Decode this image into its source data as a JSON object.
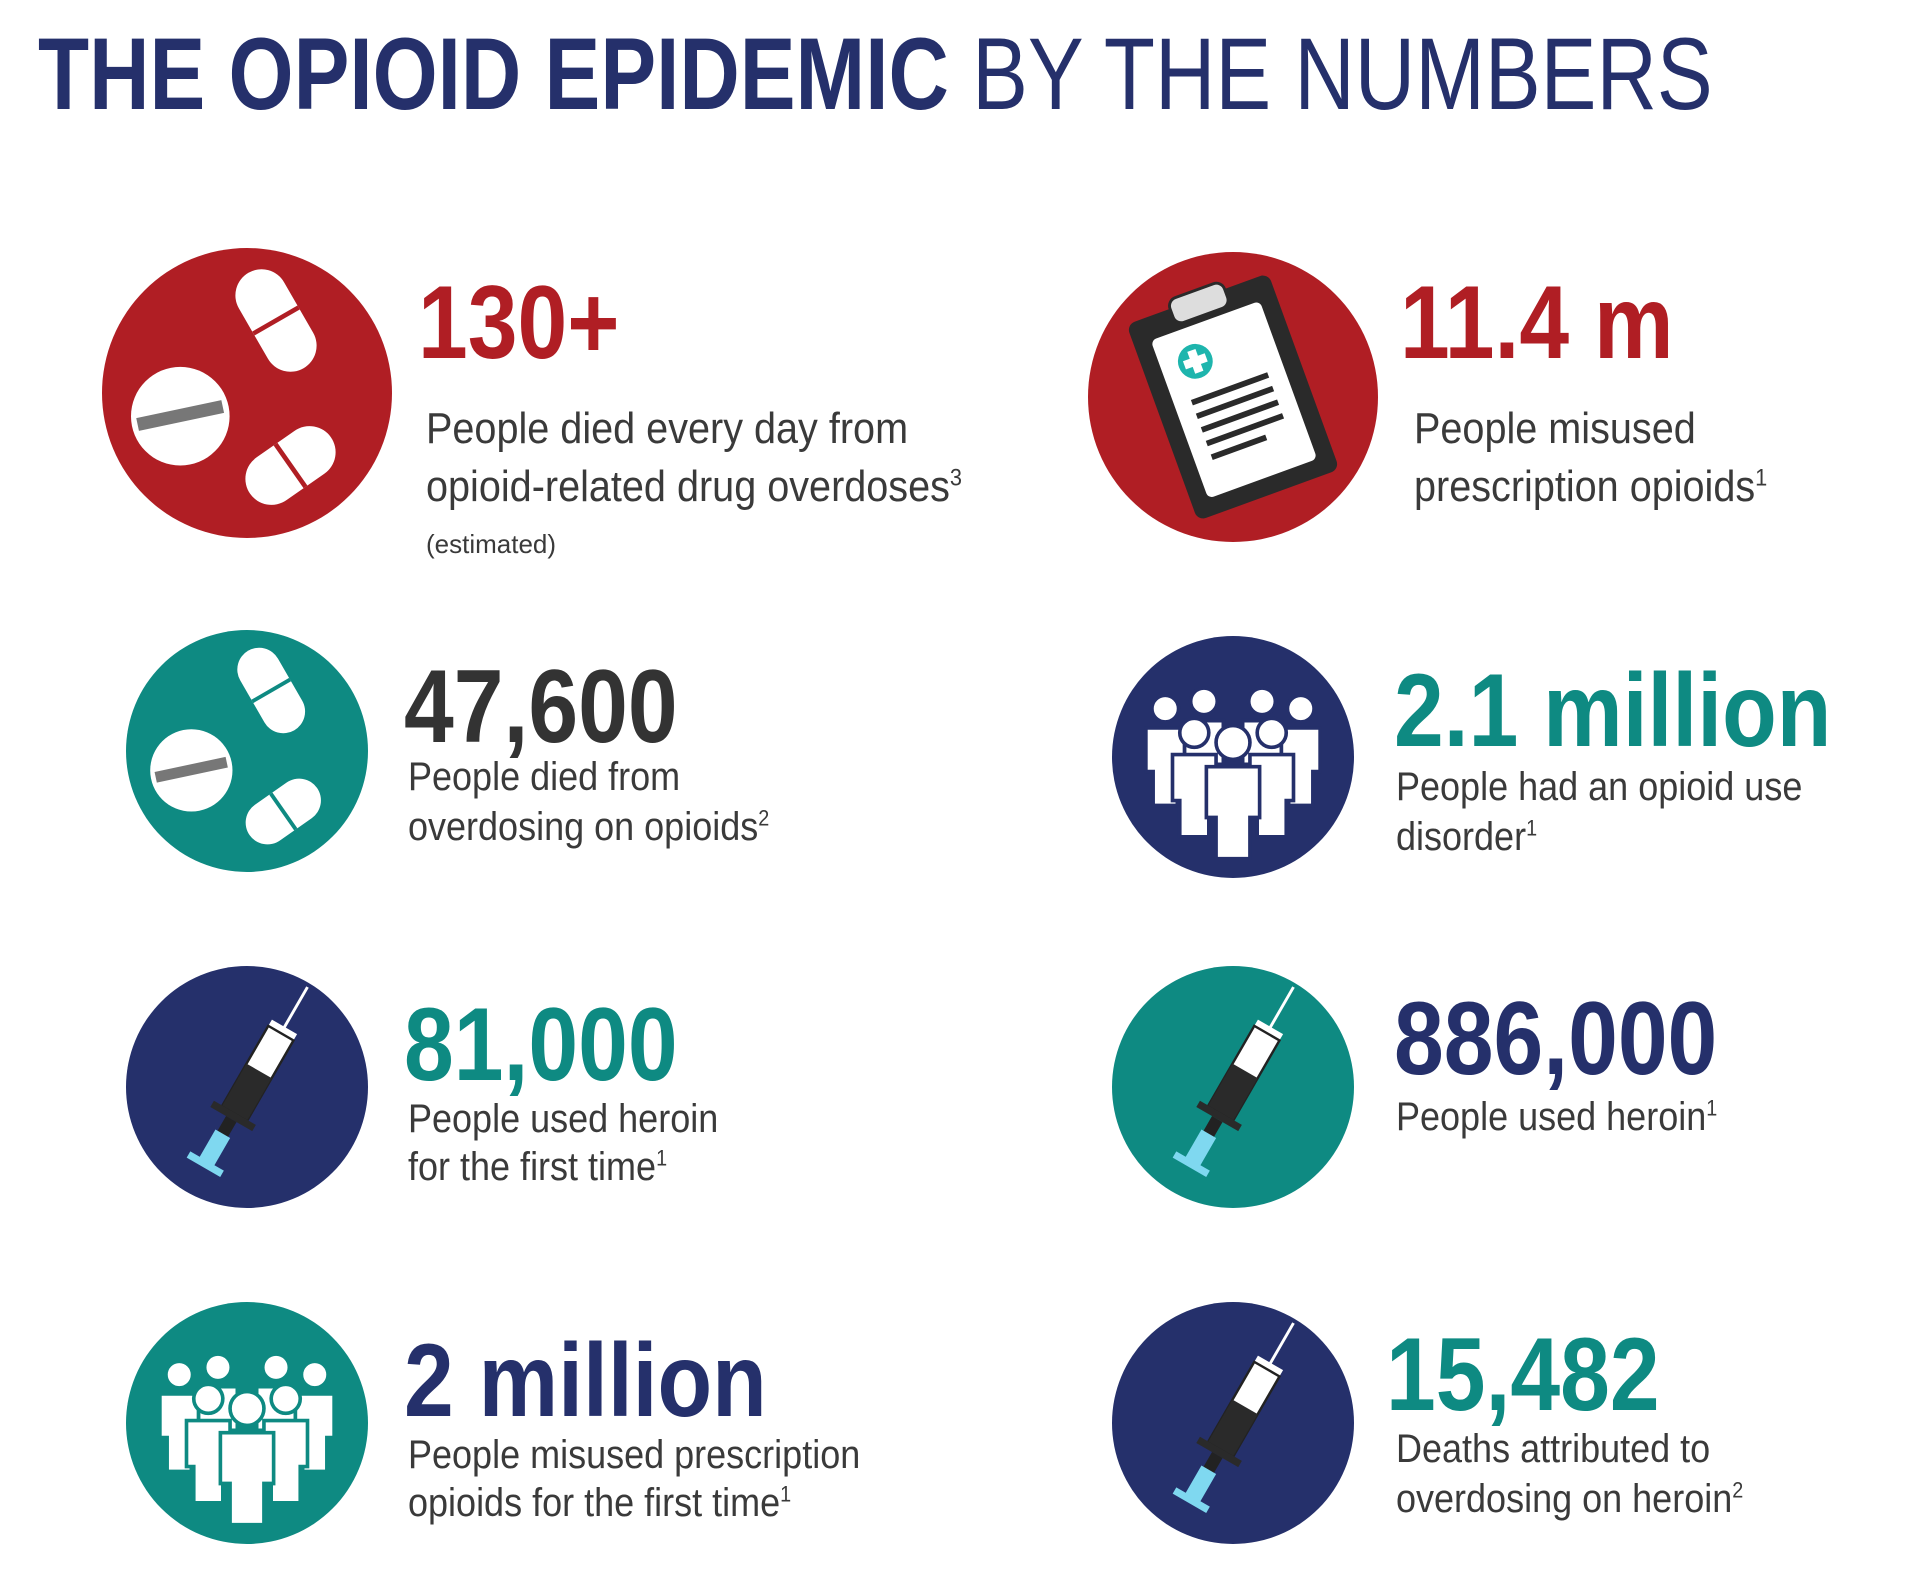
{
  "title": {
    "bold": "THE OPIOID EPIDEMIC",
    "light": " BY THE NUMBERS"
  },
  "colors": {
    "navy": "#25306b",
    "red": "#b01e24",
    "teal": "#0e8a82",
    "dark": "#333333",
    "text": "#3a3a3a"
  },
  "stats": [
    {
      "value": "130+",
      "line1": "People died every day from",
      "line2": "opioid-related drug overdoses",
      "line2_sup": "3",
      "note": "(estimated)",
      "icon": "pills-icon"
    },
    {
      "value": "11.4 m",
      "line1": "People misused",
      "line2": "prescription opioids",
      "line2_sup": "1",
      "icon": "clipboard-icon"
    },
    {
      "value": "47,600",
      "line1": "People died from",
      "line2": "overdosing on opioids",
      "line2_sup": "2",
      "icon": "pills-icon"
    },
    {
      "value": "2.1 million",
      "line1": "People had an opioid use",
      "line2": "disorder",
      "line2_sup": "1",
      "icon": "people-group-icon"
    },
    {
      "value": "81,000",
      "line1": "People used heroin",
      "line2": "for the first time",
      "line2_sup": "1",
      "icon": "syringe-icon"
    },
    {
      "value": "886,000",
      "line1": "People used heroin",
      "line1_sup": "1",
      "icon": "syringe-icon"
    },
    {
      "value": "2 million",
      "line1": "People misused prescription",
      "line2": "opioids for the first time",
      "line2_sup": "1",
      "icon": "people-group-icon"
    },
    {
      "value": "15,482",
      "line1": "Deaths attributed to",
      "line2": "overdosing on heroin",
      "line2_sup": "2",
      "icon": "syringe-icon"
    }
  ]
}
